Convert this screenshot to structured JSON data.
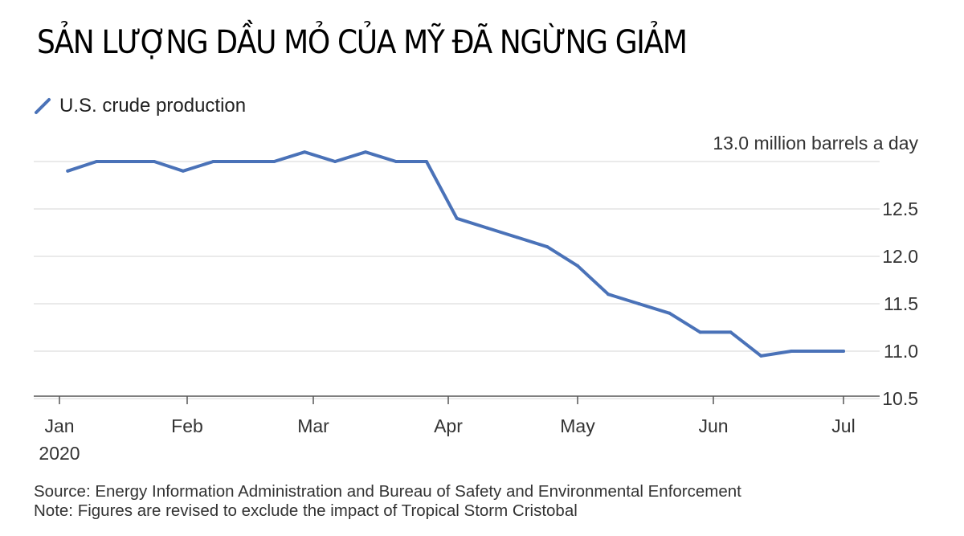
{
  "title": "SẢN LƯỢNG DẦU MỎ CỦA MỸ ĐÃ NGỪNG GIẢM",
  "legend": {
    "label": "U.S. crude production",
    "icon": "line-swatch-icon"
  },
  "footer": {
    "source": "Source: Energy Information Administration and Bureau of Safety and Environmental Enforcement",
    "note": "Note: Figures are revised to exclude the impact of Tropical Storm Cristobal"
  },
  "chart_data": {
    "type": "line",
    "title": "",
    "xlabel": "",
    "ylabel": "",
    "unit_label": "13.0 million barrels a day",
    "y_ticks": [
      13.0,
      12.5,
      12.0,
      11.5,
      11.0,
      10.5
    ],
    "y_tick_labels": [
      "12.5",
      "12.0",
      "11.5",
      "11.0",
      "10.5"
    ],
    "ylim": [
      10.3,
      13.2
    ],
    "x_tick_labels": [
      "Jan",
      "Feb",
      "Mar",
      "Apr",
      "May",
      "Jun",
      "Jul"
    ],
    "x_year_label": "2020",
    "grid": true,
    "legend_position": "top-left",
    "color": "#4a72b8",
    "series": [
      {
        "name": "U.S. crude production",
        "x": [
          "2020-01-03",
          "2020-01-10",
          "2020-01-17",
          "2020-01-24",
          "2020-01-31",
          "2020-02-07",
          "2020-02-14",
          "2020-02-21",
          "2020-02-28",
          "2020-03-06",
          "2020-03-13",
          "2020-03-20",
          "2020-03-27",
          "2020-04-03",
          "2020-04-10",
          "2020-04-17",
          "2020-04-24",
          "2020-05-01",
          "2020-05-08",
          "2020-05-15",
          "2020-05-22",
          "2020-05-29",
          "2020-06-05",
          "2020-06-12",
          "2020-06-19",
          "2020-06-26",
          "2020-07-03"
        ],
        "values": [
          12.9,
          13.0,
          13.0,
          13.0,
          12.9,
          13.0,
          13.0,
          13.0,
          13.1,
          13.0,
          13.1,
          13.0,
          13.0,
          12.4,
          12.3,
          12.2,
          12.1,
          11.9,
          11.6,
          11.5,
          11.4,
          11.2,
          11.2,
          10.95,
          11.0,
          11.0,
          11.0
        ]
      }
    ]
  }
}
